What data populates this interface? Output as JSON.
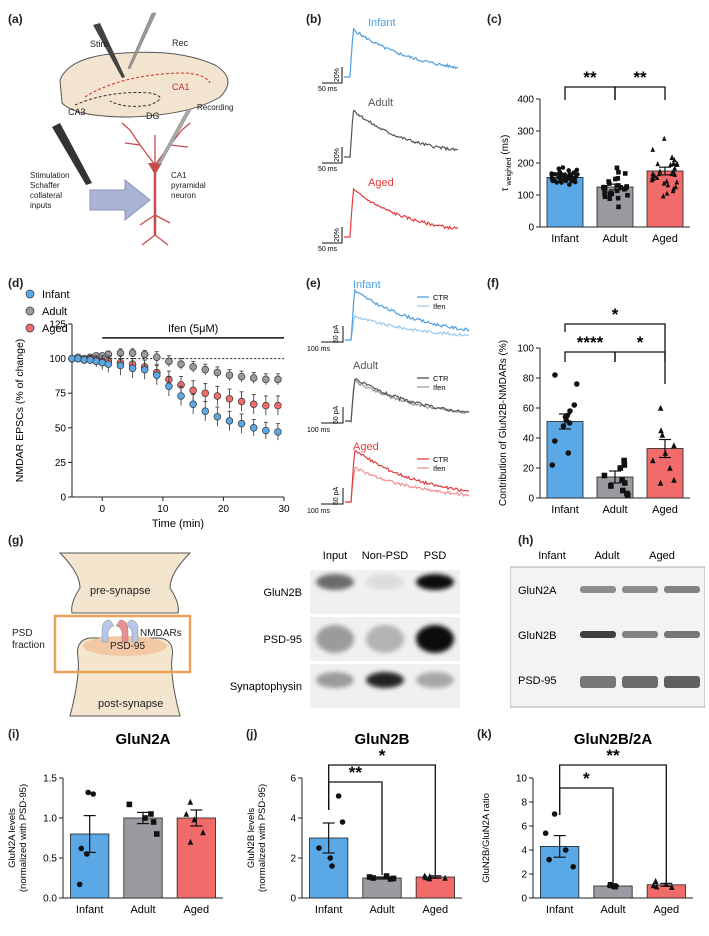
{
  "panel_labels": {
    "a": "(a)",
    "b": "(b)",
    "c": "(c)",
    "d": "(d)",
    "e": "(e)",
    "f": "(f)",
    "g": "(g)",
    "h": "(h)",
    "i": "(i)",
    "j": "(j)",
    "k": "(k)"
  },
  "colors": {
    "infant": "#5aa9e6",
    "adult": "#9a9aa0",
    "aged": "#f26b6b",
    "infant_trace": "#4f9fe0",
    "adult_trace": "#555555",
    "aged_trace": "#e53b3b",
    "infant_light": "#9cc9ee",
    "adult_light": "#9a9a9a",
    "aged_light": "#f09090",
    "box": "#e8a55a"
  },
  "groups": [
    "Infant",
    "Adult",
    "Aged"
  ],
  "a": {
    "stim": "Stim",
    "rec": "Rec",
    "ca1": "CA1",
    "ca3": "CA3",
    "dg": "DG",
    "recording": "Recording",
    "stimulation": "Stimulation",
    "schaffer": "Schaffer",
    "collateral": "collateral",
    "inputs": "inputs",
    "neuron_l1": "CA1",
    "neuron_l2": "pyramidal",
    "neuron_l3": "neuron"
  },
  "b": {
    "scale_y": "20%",
    "scale_x": "50 ms"
  },
  "e": {
    "scale_y": "50 pA",
    "scale_x": "100 ms",
    "ctr": "CTR",
    "ifen": "Ifen"
  },
  "g": {
    "pre": "pre-synapse",
    "post": "post-synapse",
    "psd_fraction_1": "PSD",
    "psd_fraction_2": "fraction",
    "nmdars": "NMDARs",
    "psd95": "PSD-95",
    "cols": [
      "Input",
      "Non-PSD",
      "PSD"
    ],
    "rows": [
      "GluN2B",
      "PSD-95",
      "Synaptophysin"
    ]
  },
  "h": {
    "cols": [
      "Infant",
      "Adult",
      "Aged"
    ],
    "rows": [
      "GluN2A",
      "GluN2B",
      "PSD-95"
    ]
  },
  "chart_data": [
    {
      "id": "c",
      "type": "bar",
      "categories": [
        "Infant",
        "Adult",
        "Aged"
      ],
      "values": [
        155,
        125,
        175
      ],
      "errors": [
        6,
        9,
        12
      ],
      "ylabel": "τ weighted (ms)",
      "ylim": [
        0,
        400
      ],
      "yticks": [
        0,
        100,
        200,
        300,
        400
      ],
      "significance": [
        {
          "pair": [
            "Infant",
            "Adult"
          ],
          "label": "**"
        },
        {
          "pair": [
            "Adult",
            "Aged"
          ],
          "label": "**"
        }
      ]
    },
    {
      "id": "d",
      "type": "line",
      "title": "Ifen (5μM)",
      "xlabel": "Time (min)",
      "ylabel": "NMDAR EPSCs (% of change)",
      "xlim": [
        -5,
        30
      ],
      "ylim": [
        0,
        125
      ],
      "xticks": [
        0,
        10,
        20,
        30
      ],
      "yticks": [
        0,
        25,
        50,
        75,
        100,
        125
      ],
      "legend": [
        "Infant",
        "Adult",
        "Aged"
      ],
      "x": [
        -5,
        -4,
        -3,
        -2,
        -1,
        0,
        1,
        2,
        3,
        4,
        5,
        6,
        7,
        8,
        9,
        10,
        11,
        12,
        13,
        14,
        15,
        16,
        17,
        18,
        19,
        20,
        21,
        22,
        23,
        24,
        25,
        26,
        27,
        28,
        29,
        30
      ],
      "series": [
        {
          "name": "Infant",
          "values": [
            100,
            100,
            99,
            99,
            98,
            97,
            96,
            97,
            95,
            94,
            93,
            92,
            92,
            90,
            88,
            84,
            80,
            76,
            73,
            70,
            67,
            65,
            62,
            60,
            58,
            57,
            55,
            54,
            53,
            52,
            50,
            49,
            48,
            47,
            47,
            47
          ]
        },
        {
          "name": "Adult",
          "values": [
            100,
            101,
            100,
            101,
            102,
            102,
            103,
            104,
            104,
            105,
            104,
            103,
            103,
            102,
            101,
            99,
            98,
            97,
            96,
            95,
            94,
            93,
            92,
            91,
            90,
            89,
            88,
            88,
            87,
            87,
            86,
            86,
            85,
            85,
            85,
            85
          ]
        },
        {
          "name": "Aged",
          "values": [
            100,
            100,
            99,
            100,
            99,
            98,
            98,
            98,
            97,
            97,
            96,
            95,
            94,
            92,
            90,
            88,
            85,
            83,
            81,
            79,
            77,
            76,
            75,
            74,
            73,
            72,
            71,
            70,
            69,
            68,
            67,
            67,
            66,
            66,
            66,
            66
          ]
        }
      ]
    },
    {
      "id": "f",
      "type": "bar",
      "categories": [
        "Infant",
        "Adult",
        "Aged"
      ],
      "values": [
        51,
        14,
        33
      ],
      "errors": [
        5,
        4,
        6
      ],
      "ylabel": "Contribution of GluN2B-NMDARs (%)",
      "ylim": [
        0,
        100
      ],
      "yticks": [
        0,
        20,
        40,
        60,
        80,
        100
      ],
      "significance": [
        {
          "pair": [
            "Infant",
            "Adult"
          ],
          "label": "****"
        },
        {
          "pair": [
            "Adult",
            "Aged"
          ],
          "label": "*"
        },
        {
          "pair": [
            "Infant",
            "Aged"
          ],
          "label": "*"
        }
      ]
    },
    {
      "id": "i",
      "type": "bar",
      "title": "GluN2A",
      "categories": [
        "Infant",
        "Adult",
        "Aged"
      ],
      "values": [
        0.8,
        1.0,
        1.0
      ],
      "errors": [
        0.23,
        0.07,
        0.1
      ],
      "ylabel": "GluN2A levels (normalized with PSD-95)",
      "ylim": [
        0,
        1.5
      ],
      "yticks": [
        0.0,
        0.5,
        1.0,
        1.5
      ],
      "significance": []
    },
    {
      "id": "j",
      "type": "bar",
      "title": "GluN2B",
      "categories": [
        "Infant",
        "Adult",
        "Aged"
      ],
      "values": [
        3.0,
        1.0,
        1.05
      ],
      "errors": [
        0.75,
        0.05,
        0.06
      ],
      "ylabel": "GluN2B levels (normalized with PSD-95)",
      "ylim": [
        0,
        6
      ],
      "yticks": [
        0,
        2,
        4,
        6
      ],
      "significance": [
        {
          "pair": [
            "Infant",
            "Adult"
          ],
          "label": "**"
        },
        {
          "pair": [
            "Infant",
            "Aged"
          ],
          "label": "*"
        }
      ]
    },
    {
      "id": "k",
      "type": "bar",
      "title": "GluN2B/2A",
      "categories": [
        "Infant",
        "Adult",
        "Aged"
      ],
      "values": [
        4.3,
        1.0,
        1.1
      ],
      "errors": [
        0.9,
        0.05,
        0.12
      ],
      "ylabel": "GluN2B/GluN2A ratio",
      "ylim": [
        0,
        10
      ],
      "yticks": [
        0,
        2,
        4,
        6,
        8,
        10
      ],
      "significance": [
        {
          "pair": [
            "Infant",
            "Adult"
          ],
          "label": "*"
        },
        {
          "pair": [
            "Infant",
            "Aged"
          ],
          "label": "**"
        }
      ]
    }
  ]
}
